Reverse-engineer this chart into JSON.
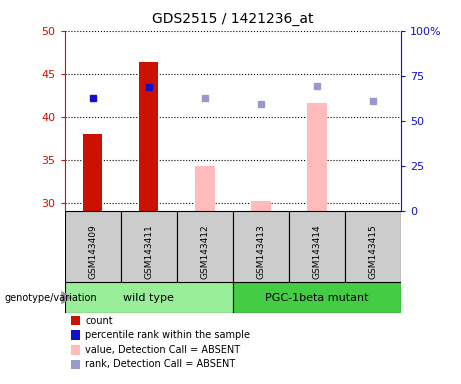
{
  "title": "GDS2515 / 1421236_at",
  "samples": [
    "GSM143409",
    "GSM143411",
    "GSM143412",
    "GSM143413",
    "GSM143414",
    "GSM143415"
  ],
  "ylim_left": [
    29,
    50
  ],
  "ylim_right": [
    0,
    100
  ],
  "yticks_left": [
    30,
    35,
    40,
    45,
    50
  ],
  "yticks_right": [
    0,
    25,
    50,
    75,
    100
  ],
  "ytick_labels_right": [
    "0",
    "25",
    "50",
    "75",
    "100%"
  ],
  "red_bars": {
    "GSM143409": 38.0,
    "GSM143411": 46.4
  },
  "pink_bars": {
    "GSM143412": 34.3,
    "GSM143413": 30.2,
    "GSM143414": 41.6
  },
  "blue_dots_left": {
    "GSM143409": 42.2,
    "GSM143411": 43.5
  },
  "lavender_dots_left": {
    "GSM143412": 42.2,
    "GSM143413": 41.5,
    "GSM143414": 43.6,
    "GSM143415": 41.8
  },
  "bar_bottom": 29,
  "group1_samples": [
    0,
    1,
    2
  ],
  "group2_samples": [
    3,
    4,
    5
  ],
  "group1_label": "wild type",
  "group2_label": "PGC-1beta mutant",
  "group1_color": "#99ee99",
  "group2_color": "#44cc44",
  "sample_box_color": "#cccccc",
  "bar_color_red": "#cc1100",
  "bar_color_pink": "#ffbbbb",
  "dot_color_blue": "#1111cc",
  "dot_color_lavender": "#9999cc",
  "legend_items": [
    {
      "color": "#cc1100",
      "label": "count"
    },
    {
      "color": "#1111cc",
      "label": "percentile rank within the sample"
    },
    {
      "color": "#ffbbbb",
      "label": "value, Detection Call = ABSENT"
    },
    {
      "color": "#9999cc",
      "label": "rank, Detection Call = ABSENT"
    }
  ],
  "left_axis_color": "#cc1100",
  "right_axis_color": "#1111cc",
  "bar_width": 0.35
}
